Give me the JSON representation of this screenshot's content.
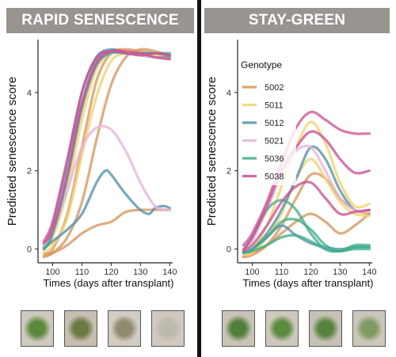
{
  "panels": {
    "left_title": "RAPID SENESCENCE",
    "right_title": "STAY-GREEN"
  },
  "colors": {
    "banner": "#9a9490",
    "5002": "#d9955a",
    "5011": "#f2d26a",
    "5012": "#4f92ad",
    "5021": "#e8b4d8",
    "5036": "#3fae8a",
    "5038": "#cf4f93"
  },
  "chart_data": [
    {
      "type": "line",
      "panel": "RAPID SENESCENCE",
      "xlabel": "Times (days after transplant)",
      "ylabel": "Predicted senescence score",
      "xlim": [
        95,
        141
      ],
      "ylim": [
        -0.35,
        5.35
      ],
      "xticks": [
        100,
        110,
        120,
        130,
        140
      ],
      "yticks": [
        0,
        2,
        4
      ],
      "grid": false,
      "legend": "none",
      "series": [
        {
          "genotype": "5002",
          "x": [
            97,
            100,
            105,
            110,
            115,
            120,
            125,
            130,
            135,
            140
          ],
          "y": [
            -0.1,
            0.0,
            0.9,
            2.6,
            4.3,
            5.0,
            5.1,
            5.05,
            5.0,
            4.9
          ]
        },
        {
          "genotype": "5002",
          "x": [
            97,
            100,
            105,
            110,
            115,
            120,
            125,
            130,
            135,
            140
          ],
          "y": [
            -0.2,
            -0.1,
            0.3,
            1.2,
            2.8,
            4.2,
            4.9,
            5.1,
            5.05,
            4.95
          ]
        },
        {
          "genotype": "5002",
          "x": [
            97,
            100,
            105,
            110,
            115,
            120,
            125,
            130,
            135,
            140
          ],
          "y": [
            -0.15,
            -0.1,
            0.1,
            0.4,
            0.6,
            0.7,
            0.95,
            1.0,
            1.0,
            1.0
          ]
        },
        {
          "genotype": "5011",
          "x": [
            97,
            100,
            105,
            110,
            115,
            120,
            125,
            130,
            135,
            140
          ],
          "y": [
            0.0,
            0.3,
            1.5,
            3.3,
            4.6,
            5.0,
            5.05,
            5.0,
            4.95,
            4.9
          ]
        },
        {
          "genotype": "5011",
          "x": [
            97,
            100,
            105,
            110,
            115,
            120,
            125,
            130,
            135,
            140
          ],
          "y": [
            -0.1,
            0.1,
            0.8,
            2.4,
            3.9,
            4.8,
            5.0,
            5.0,
            5.0,
            4.95
          ]
        },
        {
          "genotype": "5012",
          "x": [
            97,
            100,
            105,
            110,
            115,
            120,
            125,
            130,
            135,
            140
          ],
          "y": [
            0.1,
            0.6,
            2.2,
            4.0,
            4.9,
            5.1,
            5.0,
            5.0,
            5.0,
            5.0
          ]
        },
        {
          "genotype": "5012",
          "x": [
            97,
            100,
            105,
            110,
            115,
            120,
            125,
            130,
            135,
            140
          ],
          "y": [
            0.05,
            0.4,
            1.9,
            3.7,
            4.8,
            5.05,
            5.0,
            4.95,
            4.9,
            4.9
          ]
        },
        {
          "genotype": "5012",
          "x": [
            97,
            100,
            105,
            110,
            115,
            118,
            120,
            125,
            130,
            133,
            135,
            138,
            140
          ],
          "y": [
            0.0,
            0.2,
            0.5,
            0.9,
            1.7,
            2.0,
            1.9,
            1.4,
            1.0,
            0.9,
            1.05,
            1.1,
            1.05
          ]
        },
        {
          "genotype": "5021",
          "x": [
            97,
            100,
            105,
            110,
            115,
            120,
            125,
            130,
            135,
            140
          ],
          "y": [
            0.1,
            0.5,
            1.9,
            3.6,
            4.7,
            5.0,
            5.0,
            4.95,
            4.9,
            4.85
          ]
        },
        {
          "genotype": "5021",
          "x": [
            97,
            100,
            105,
            110,
            115,
            120,
            125,
            130,
            135,
            140
          ],
          "y": [
            0.1,
            0.4,
            1.5,
            2.6,
            3.1,
            3.05,
            2.5,
            1.7,
            1.1,
            1.0
          ]
        },
        {
          "genotype": "5036",
          "x": [
            97,
            100,
            105,
            110,
            115,
            120,
            125,
            130,
            135,
            140
          ],
          "y": [
            0.0,
            0.4,
            1.8,
            3.6,
            4.7,
            5.0,
            5.0,
            5.0,
            5.0,
            4.95
          ]
        },
        {
          "genotype": "5038",
          "x": [
            97,
            100,
            105,
            110,
            115,
            120,
            125,
            130,
            135,
            140
          ],
          "y": [
            0.2,
            0.7,
            2.3,
            4.0,
            4.9,
            5.05,
            5.0,
            4.95,
            5.0,
            4.95
          ]
        },
        {
          "genotype": "5038",
          "x": [
            97,
            100,
            105,
            110,
            115,
            120,
            125,
            130,
            135,
            140
          ],
          "y": [
            0.15,
            0.5,
            1.9,
            3.7,
            4.75,
            5.05,
            5.05,
            5.0,
            4.9,
            4.85
          ]
        }
      ]
    },
    {
      "type": "line",
      "panel": "STAY-GREEN",
      "xlabel": "Times (days after transplant)",
      "ylabel": "Predicted senescence score",
      "xlim": [
        95,
        141
      ],
      "ylim": [
        -0.35,
        5.35
      ],
      "xticks": [
        100,
        110,
        120,
        130,
        140
      ],
      "yticks": [
        0,
        2,
        4
      ],
      "grid": false,
      "legend_title": "Genotype",
      "legend": "top-left",
      "legend_items": [
        "5002",
        "5011",
        "5012",
        "5021",
        "5036",
        "5038"
      ],
      "series": [
        {
          "genotype": "5002",
          "x": [
            97,
            100,
            105,
            110,
            115,
            120,
            125,
            130,
            135,
            140
          ],
          "y": [
            -0.2,
            -0.1,
            0.1,
            0.4,
            0.7,
            0.9,
            0.7,
            0.4,
            0.6,
            0.9
          ]
        },
        {
          "genotype": "5002",
          "x": [
            97,
            100,
            105,
            110,
            115,
            120,
            125,
            130,
            135,
            140
          ],
          "y": [
            -0.2,
            -0.15,
            0.1,
            0.6,
            1.3,
            1.9,
            1.8,
            1.3,
            1.0,
            0.9
          ]
        },
        {
          "genotype": "5011",
          "x": [
            97,
            100,
            105,
            110,
            115,
            120,
            125,
            130,
            135,
            140
          ],
          "y": [
            -0.1,
            0.0,
            0.6,
            1.6,
            2.6,
            3.25,
            2.7,
            1.7,
            1.1,
            1.15
          ]
        },
        {
          "genotype": "5011",
          "x": [
            97,
            100,
            105,
            110,
            115,
            120,
            125,
            130,
            135,
            140
          ],
          "y": [
            -0.15,
            -0.1,
            0.3,
            0.9,
            1.8,
            2.3,
            1.8,
            1.2,
            0.9,
            0.85
          ]
        },
        {
          "genotype": "5012",
          "x": [
            97,
            100,
            105,
            110,
            115,
            120,
            125,
            130,
            135,
            140
          ],
          "y": [
            -0.1,
            0.0,
            0.4,
            1.0,
            1.8,
            2.6,
            2.3,
            1.5,
            1.0,
            1.0
          ]
        },
        {
          "genotype": "5012",
          "x": [
            97,
            100,
            105,
            110,
            115,
            120,
            125,
            130,
            135,
            140
          ],
          "y": [
            -0.1,
            0.0,
            0.3,
            0.6,
            0.35,
            0.15,
            0.05,
            0.0,
            0.05,
            0.05
          ]
        },
        {
          "genotype": "5021",
          "x": [
            97,
            100,
            105,
            110,
            115,
            120,
            125,
            130,
            135,
            140
          ],
          "y": [
            -0.05,
            0.2,
            1.0,
            1.9,
            2.5,
            2.6,
            2.0,
            1.3,
            1.0,
            0.95
          ]
        },
        {
          "genotype": "5036",
          "x": [
            97,
            100,
            105,
            110,
            115,
            120,
            125,
            130,
            135,
            140
          ],
          "y": [
            -0.05,
            0.3,
            1.0,
            1.25,
            1.0,
            0.4,
            0.0,
            -0.05,
            0.1,
            0.1
          ]
        },
        {
          "genotype": "5036",
          "x": [
            97,
            100,
            105,
            110,
            115,
            120,
            125,
            130,
            135,
            140
          ],
          "y": [
            -0.1,
            0.0,
            0.3,
            0.7,
            0.75,
            0.5,
            0.1,
            -0.05,
            0.05,
            0.05
          ]
        },
        {
          "genotype": "5036",
          "x": [
            97,
            100,
            105,
            110,
            115,
            120,
            125,
            130,
            135,
            140
          ],
          "y": [
            -0.1,
            -0.05,
            0.1,
            0.3,
            0.35,
            0.2,
            0.0,
            -0.05,
            0.0,
            0.0
          ]
        },
        {
          "genotype": "5038",
          "x": [
            97,
            100,
            105,
            110,
            115,
            120,
            125,
            130,
            135,
            140
          ],
          "y": [
            0.1,
            0.4,
            1.2,
            2.2,
            3.1,
            3.5,
            3.3,
            3.05,
            2.95,
            2.95
          ]
        },
        {
          "genotype": "5038",
          "x": [
            97,
            100,
            105,
            110,
            115,
            120,
            125,
            130,
            135,
            140
          ],
          "y": [
            0.0,
            0.3,
            1.1,
            2.0,
            2.6,
            3.0,
            2.8,
            2.3,
            1.95,
            2.0
          ]
        },
        {
          "genotype": "5038",
          "x": [
            97,
            100,
            105,
            110,
            115,
            120,
            125,
            130,
            135,
            140
          ],
          "y": [
            -0.05,
            0.1,
            0.6,
            1.2,
            1.6,
            1.7,
            1.3,
            0.9,
            0.95,
            1.0
          ]
        }
      ]
    }
  ],
  "thumbnails": {
    "left": [
      {
        "leaf": "#5c8a3c",
        "soil": "#cfc8bc"
      },
      {
        "leaf": "#6b7a44",
        "soil": "#c6bfb2"
      },
      {
        "leaf": "#8e8a6c",
        "soil": "#d3ccc2"
      },
      {
        "leaf": "#bdb9ad",
        "soil": "#cfc9c0"
      }
    ],
    "right": [
      {
        "leaf": "#4f7f3a",
        "soil": "#c9c2b6"
      },
      {
        "leaf": "#5a8b40",
        "soil": "#cfc8bd"
      },
      {
        "leaf": "#56843c",
        "soil": "#c7c0b4"
      },
      {
        "leaf": "#7f9a62",
        "soil": "#cdc6ba"
      }
    ]
  }
}
